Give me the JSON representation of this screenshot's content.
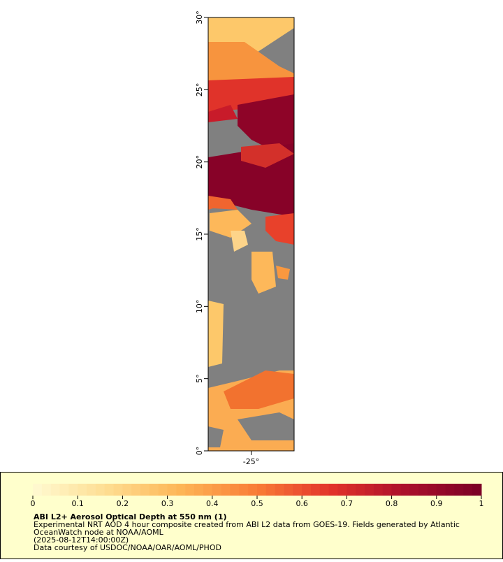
{
  "chart_data": {
    "type": "map",
    "title": "ABI L2+ Aerosol Optical Depth at 550 nm (1)",
    "description_lines": [
      "Experimental NRT AOD 4 hour composite created from ABI L2 data from GOES-19. Fields generated by Atlantic",
      "OceanWatch node at NOAA/AOML",
      "(2025-08-12T14:00:00Z)",
      "Data courtesy of USDOC/NOAA/OAR/AOML/PHOD"
    ],
    "xlim": [
      -28,
      -22
    ],
    "ylim": [
      0,
      30
    ],
    "xticks": [
      {
        "value": -25,
        "label": "-25°"
      }
    ],
    "yticks": [
      {
        "value": 0,
        "label": "0°"
      },
      {
        "value": 5,
        "label": "5°"
      },
      {
        "value": 10,
        "label": "10°"
      },
      {
        "value": 15,
        "label": "15°"
      },
      {
        "value": 20,
        "label": "20°"
      },
      {
        "value": 25,
        "label": "25°"
      },
      {
        "value": 30,
        "label": "30°"
      }
    ],
    "colorbar": {
      "lim": [
        0,
        1
      ],
      "ticks": [
        0,
        0.1,
        0.2,
        0.3,
        0.4,
        0.5,
        0.6,
        0.7,
        0.8,
        0.9,
        1
      ],
      "colors": [
        "#fffad2",
        "#fedd90",
        "#fdb455",
        "#f97c36",
        "#e2322a",
        "#aa0f2b",
        "#7a0026"
      ]
    }
  }
}
